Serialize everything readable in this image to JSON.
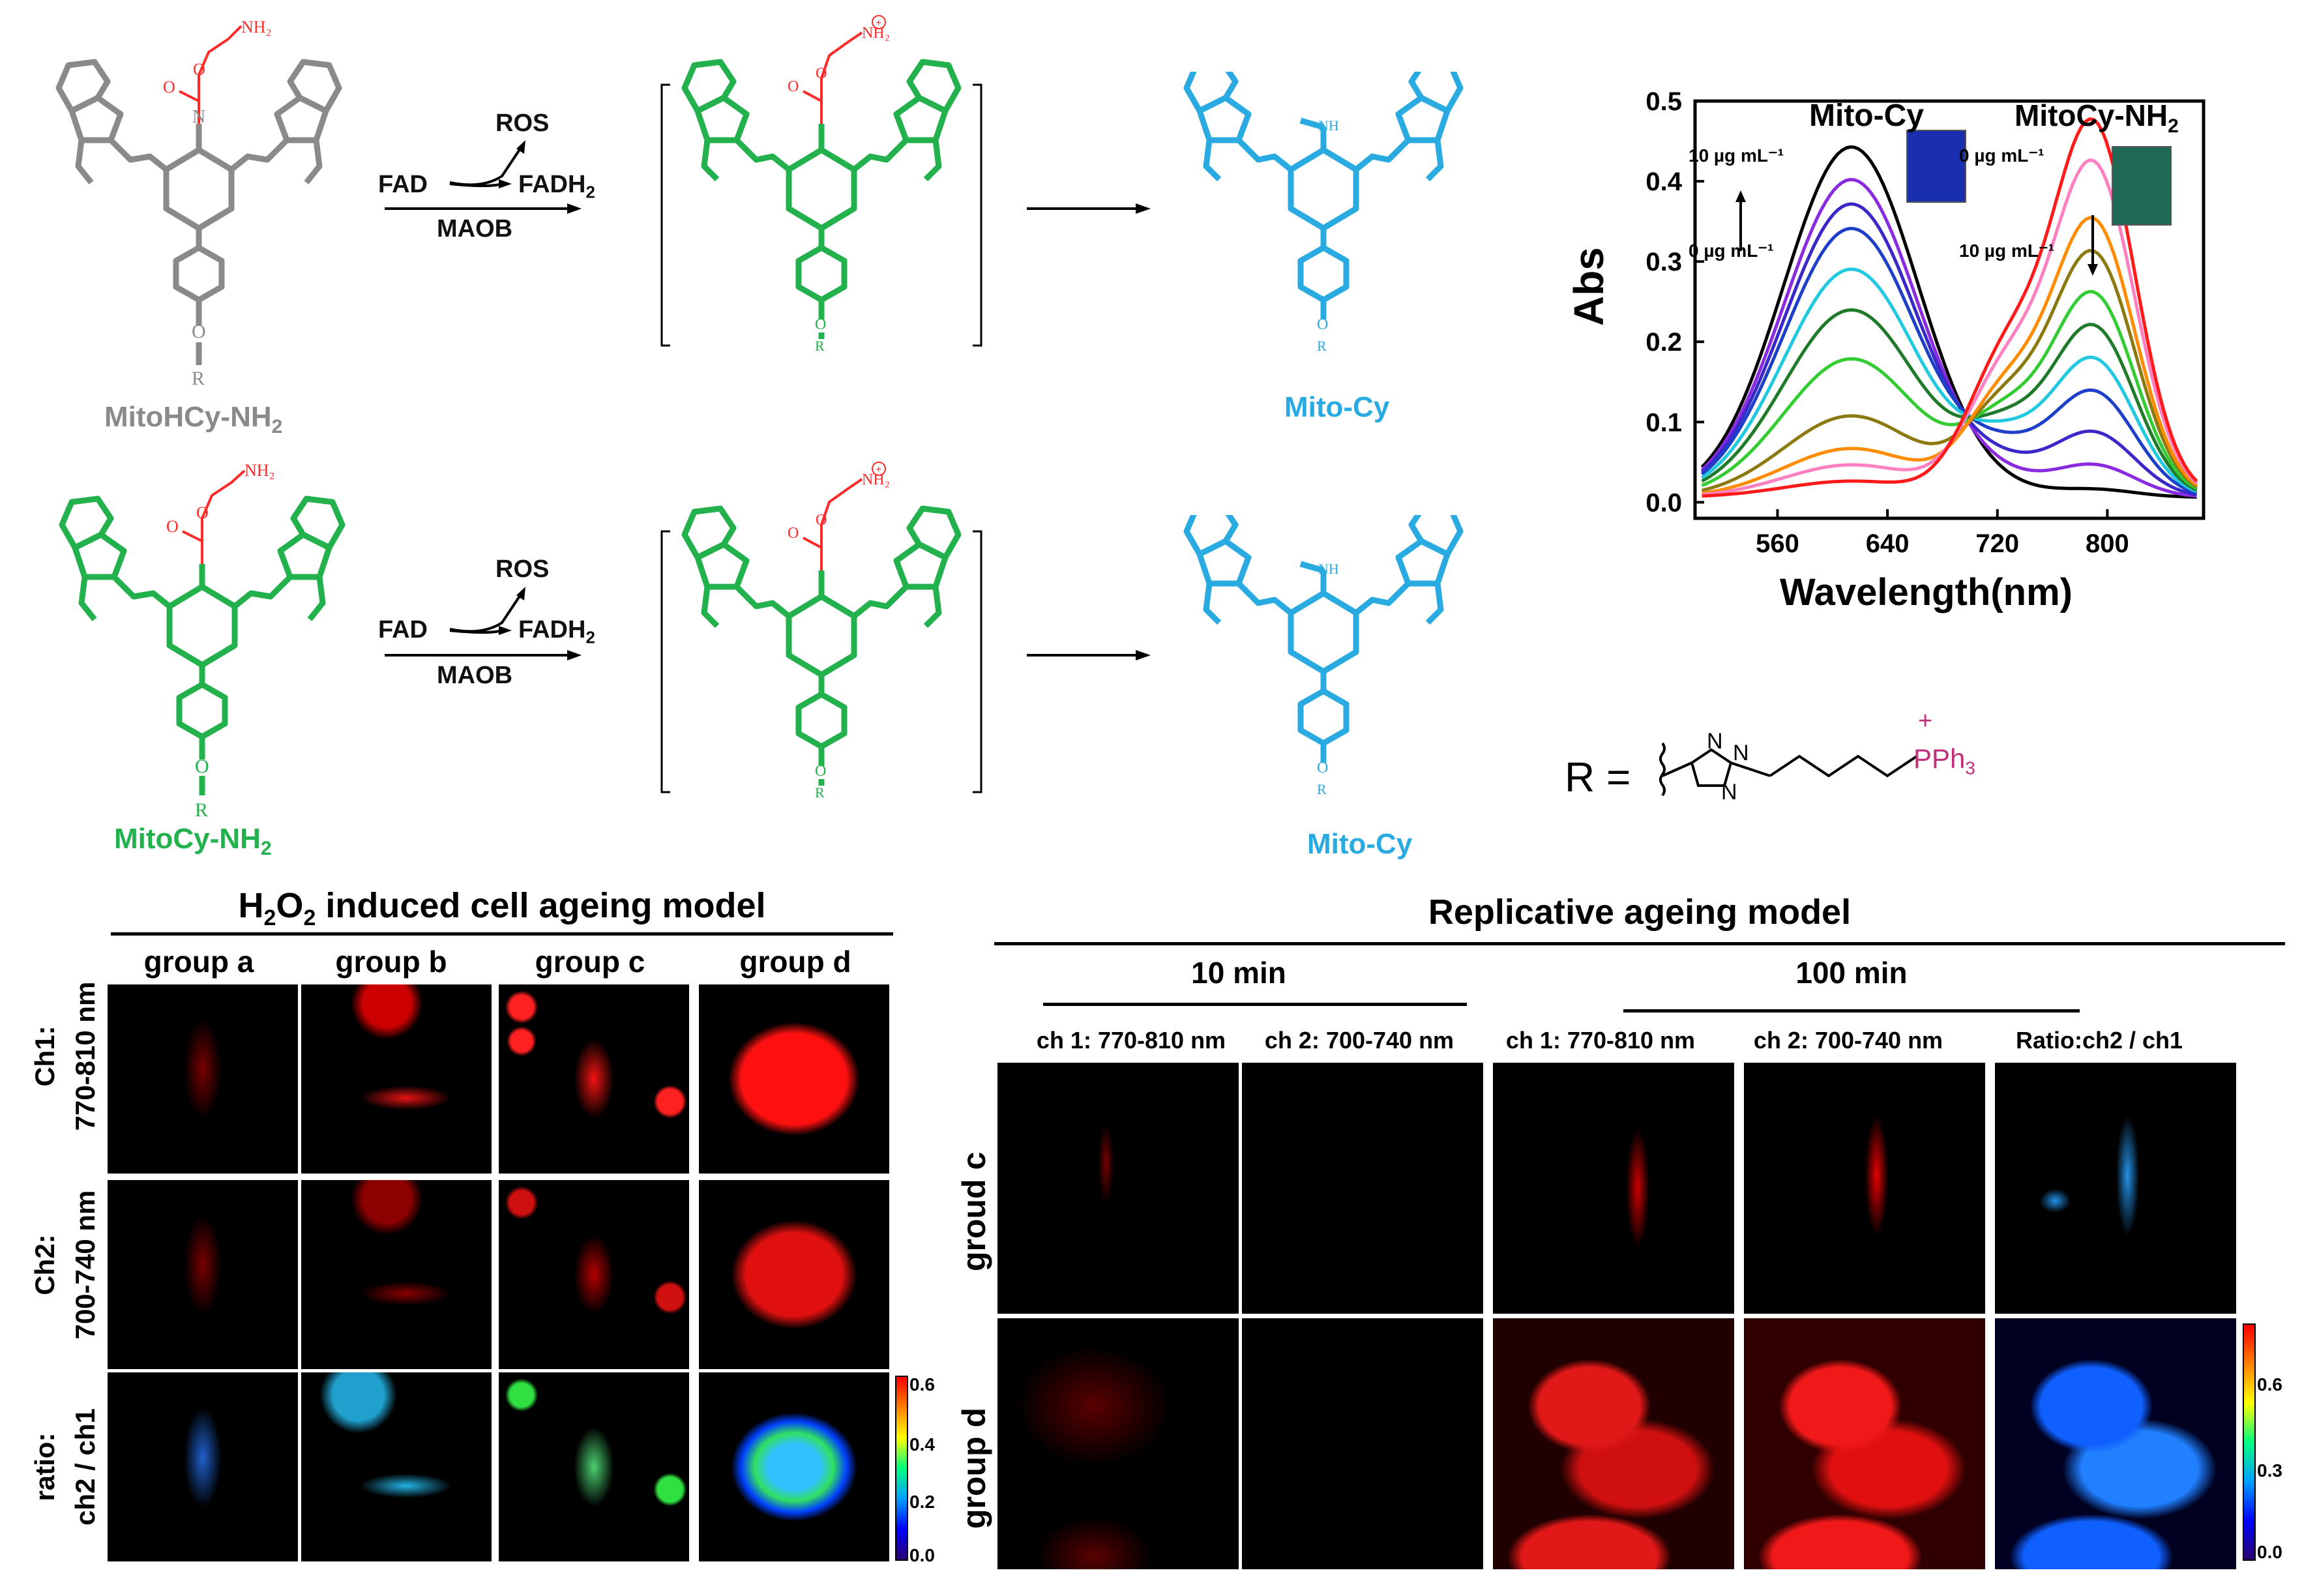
{
  "scheme": {
    "row1": {
      "reactant": "MitoHCy-NH",
      "reactant_sub": "2",
      "reagent_top": "ROS",
      "reagent_left": "FAD",
      "reagent_right": "FADH",
      "reagent_right_sub": "2",
      "enzyme": "MAOB",
      "product": "Mito-Cy"
    },
    "row2": {
      "reactant": "MitoCy-NH",
      "reactant_sub": "2",
      "reagent_top": "ROS",
      "reagent_left": "FAD",
      "reagent_right": "FADH",
      "reagent_right_sub": "2",
      "enzyme": "MAOB",
      "product": "Mito-Cy"
    },
    "r_group": {
      "prefix": "R =",
      "tail": "PPh",
      "tail_sub": "3",
      "plus": "+"
    },
    "colors": {
      "gray": "#8a8a8a",
      "green": "#22b14c",
      "blue": "#29abe2",
      "red": "#ff2a2a",
      "magenta": "#c0307a"
    }
  },
  "chart_data": {
    "type": "line",
    "xlabel": "Wavelength(nm)",
    "ylabel": "Abs",
    "xlim": [
      500,
      870
    ],
    "ylim": [
      -0.02,
      0.5
    ],
    "xticks": [
      560,
      640,
      720,
      800
    ],
    "yticks": [
      0.0,
      0.1,
      0.2,
      0.3,
      0.4,
      0.5
    ],
    "annotations": {
      "left_title": "Mito-Cy",
      "right_title": "MitoCy-NH",
      "right_title_sub": "2",
      "left_top": "10 µg mL⁻¹",
      "left_bottom": "0 µg mL⁻¹",
      "right_top": "0 µg mL⁻¹",
      "right_bottom": "10 µg mL⁻¹"
    },
    "series": [
      {
        "color": "#000000",
        "peak1": 0.43,
        "peak2": 0.01
      },
      {
        "color": "#8a2be2",
        "peak1": 0.39,
        "peak2": 0.04
      },
      {
        "color": "#3b28c8",
        "peak1": 0.36,
        "peak2": 0.08
      },
      {
        "color": "#1e40c8",
        "peak1": 0.33,
        "peak2": 0.13
      },
      {
        "color": "#20c8e0",
        "peak1": 0.28,
        "peak2": 0.17
      },
      {
        "color": "#1f7a2a",
        "peak1": 0.23,
        "peak2": 0.21
      },
      {
        "color": "#33cc33",
        "peak1": 0.17,
        "peak2": 0.25
      },
      {
        "color": "#8a7a10",
        "peak1": 0.1,
        "peak2": 0.3
      },
      {
        "color": "#ff8c00",
        "peak1": 0.06,
        "peak2": 0.34
      },
      {
        "color": "#ff80c0",
        "peak1": 0.04,
        "peak2": 0.41
      },
      {
        "color": "#ff1a1a",
        "peak1": 0.02,
        "peak2": 0.46
      }
    ]
  },
  "left_panel": {
    "title_pre": "H",
    "title_sub1": "2",
    "title_mid": "O",
    "title_sub2": "2",
    "title_post": " induced cell ageing model",
    "columns": [
      "group a",
      "group b",
      "group c",
      "group d"
    ],
    "rows": [
      {
        "l1": "Ch1:",
        "l2": "770-810 nm"
      },
      {
        "l1": "Ch2:",
        "l2": "700-740 nm"
      },
      {
        "l1": "ratio:",
        "l2": "ch2 / ch1"
      }
    ],
    "colorbar_ticks": [
      "0.6",
      "0.4",
      "0.2",
      "0.0"
    ]
  },
  "right_panel": {
    "title": "Replicative ageing model",
    "time1": "10 min",
    "time2": "100 min",
    "channels": [
      "ch 1: 770-810 nm",
      "ch 2: 700-740 nm",
      "ch 1: 770-810 nm",
      "ch 2: 700-740 nm",
      "Ratio:ch2 / ch1"
    ],
    "rows": [
      "groud c",
      "group d"
    ],
    "colorbar_ticks": [
      "0.6",
      "0.3",
      "0.0"
    ]
  }
}
